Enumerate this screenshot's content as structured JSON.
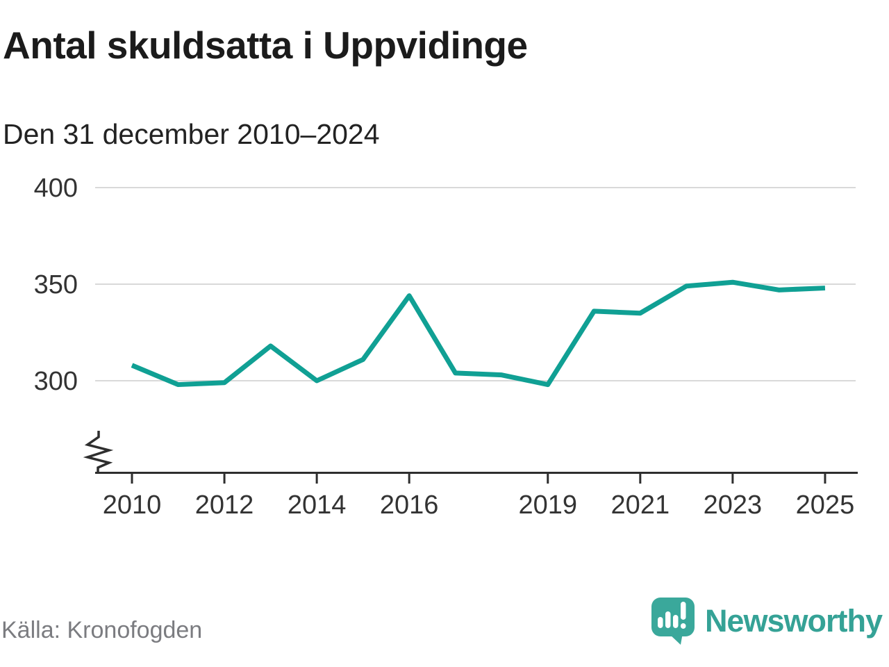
{
  "header": {
    "title": "Antal skuldsatta i Uppvidinge",
    "subtitle": "Den 31 december 2010–2024"
  },
  "chart_data": {
    "type": "line",
    "title": "Antal skuldsatta i Uppvidinge",
    "subtitle": "Den 31 december 2010–2024",
    "x": [
      2010,
      2011,
      2012,
      2013,
      2014,
      2015,
      2016,
      2017,
      2018,
      2019,
      2020,
      2021,
      2022,
      2023,
      2024,
      2025
    ],
    "series": [
      {
        "name": "Antal skuldsatta",
        "values": [
          308,
          298,
          299,
          318,
          300,
          311,
          344,
          304,
          303,
          298,
          336,
          335,
          349,
          351,
          347,
          348
        ]
      }
    ],
    "x_tick_years": [
      2010,
      2012,
      2014,
      2016,
      2019,
      2021,
      2023,
      2025
    ],
    "x_tick_labels": [
      "2010",
      "2012",
      "2014",
      "2016",
      "2019",
      "2021",
      "2023",
      "2025"
    ],
    "y_ticks": [
      300,
      350,
      400
    ],
    "y_tick_labels": [
      "300",
      "350",
      "400"
    ],
    "ylim": [
      300,
      400
    ],
    "xlim": [
      2010,
      2025
    ],
    "y_axis_break": true,
    "grid": true,
    "legend": "none",
    "line_color": "#10a094"
  },
  "footer": {
    "source": "Källa: Kronofogden",
    "brand": "Newsworthy"
  },
  "colors": {
    "line": "#10a094",
    "logo_mark": "#3aa89b",
    "brand_text": "#35a296",
    "title_text": "#1b1b1b",
    "subtitle_text": "#222222",
    "axis_text": "#333333",
    "axis_line": "#2e2e2e",
    "gridline": "#d9d9d9",
    "source_text": "#7b7c80",
    "background": "#ffffff"
  }
}
